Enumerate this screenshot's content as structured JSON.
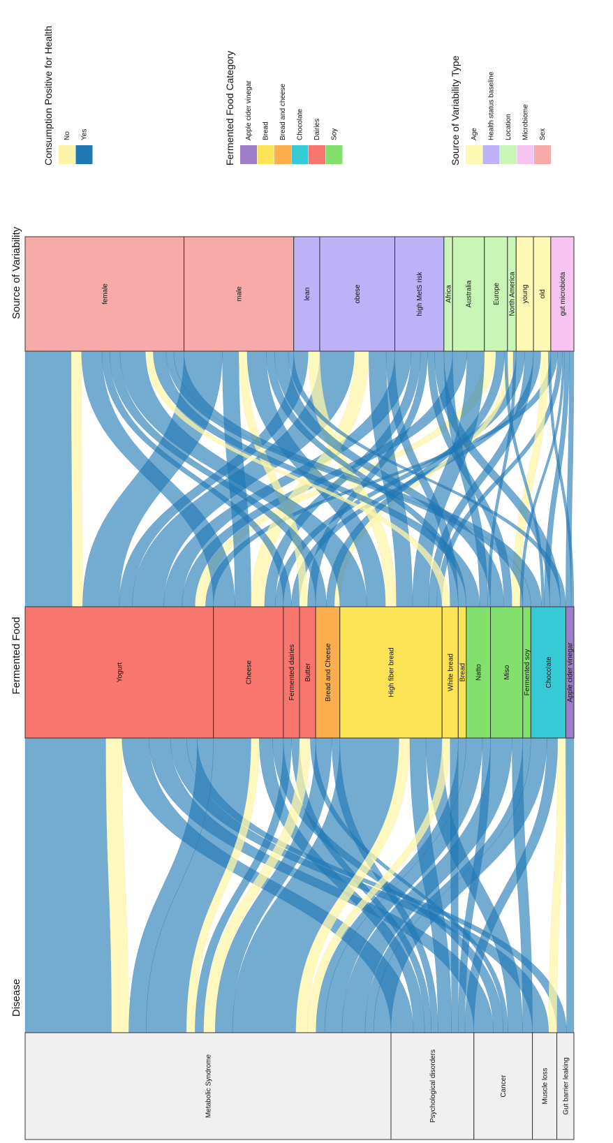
{
  "axes": [
    {
      "id": "disease",
      "title": "Disease"
    },
    {
      "id": "food",
      "title": "Fermented Food"
    },
    {
      "id": "source",
      "title": "Source of Variability"
    }
  ],
  "nodes": {
    "disease": [
      {
        "id": "d_met",
        "label": "Metabolic Syndrome",
        "color": "#f0f0f0",
        "weight": 150
      },
      {
        "id": "d_psy",
        "label": "Psychological disorders",
        "color": "#f0f0f0",
        "weight": 34
      },
      {
        "id": "d_can",
        "label": "Cancer",
        "color": "#f0f0f0",
        "weight": 24
      },
      {
        "id": "d_mus",
        "label": "Muscle loss",
        "color": "#f0f0f0",
        "weight": 10
      },
      {
        "id": "d_gut",
        "label": "Gut barrier leaking",
        "color": "#f0f0f0",
        "weight": 7
      }
    ],
    "food": [
      {
        "id": "f_yog",
        "label": "Yogurt",
        "color": "#f8766d",
        "weight": 70
      },
      {
        "id": "f_che",
        "label": "Cheese",
        "color": "#f8766d",
        "weight": 26
      },
      {
        "id": "f_fd",
        "label": "Fermented dairies",
        "color": "#f8766d",
        "weight": 6
      },
      {
        "id": "f_but",
        "label": "Butter",
        "color": "#f8766d",
        "weight": 6
      },
      {
        "id": "f_bc",
        "label": "Bread and Cheese",
        "color": "#fbae4b",
        "weight": 9
      },
      {
        "id": "f_hfb",
        "label": "High fiber bread",
        "color": "#fde457",
        "weight": 38
      },
      {
        "id": "f_wb",
        "label": "White bread",
        "color": "#fde457",
        "weight": 6
      },
      {
        "id": "f_br",
        "label": "Bread",
        "color": "#fde457",
        "weight": 3
      },
      {
        "id": "f_nat",
        "label": "Natto",
        "color": "#82e06c",
        "weight": 9
      },
      {
        "id": "f_mis",
        "label": "Miso",
        "color": "#82e06c",
        "weight": 12
      },
      {
        "id": "f_fs",
        "label": "Fermented soy",
        "color": "#82e06c",
        "weight": 3
      },
      {
        "id": "f_cho",
        "label": "Chocolate",
        "color": "#36c9d6",
        "weight": 13
      },
      {
        "id": "f_acv",
        "label": "Apple cider vinegar",
        "color": "#9e7dc8",
        "weight": 3
      }
    ],
    "source": [
      {
        "id": "s_fem",
        "label": "female",
        "color": "#f8aaa8",
        "weight": 55
      },
      {
        "id": "s_mal",
        "label": "male",
        "color": "#f8aaa8",
        "weight": 38
      },
      {
        "id": "s_lea",
        "label": "lean",
        "color": "#bdb1f8",
        "weight": 9
      },
      {
        "id": "s_obe",
        "label": "obese",
        "color": "#bdb1f8",
        "weight": 26
      },
      {
        "id": "s_hms",
        "label": "high MetS risk",
        "color": "#bdb1f8",
        "weight": 17
      },
      {
        "id": "s_afr",
        "label": "Africa",
        "color": "#c9f5b6",
        "weight": 3
      },
      {
        "id": "s_aus",
        "label": "Australia",
        "color": "#c9f5b6",
        "weight": 11
      },
      {
        "id": "s_eur",
        "label": "Europe",
        "color": "#c9f5b6",
        "weight": 8
      },
      {
        "id": "s_nam",
        "label": "North America",
        "color": "#c9f5b6",
        "weight": 3
      },
      {
        "id": "s_you",
        "label": "young",
        "color": "#fdf9b4",
        "weight": 6
      },
      {
        "id": "s_old",
        "label": "old",
        "color": "#fdf9b4",
        "weight": 6
      },
      {
        "id": "s_gut",
        "label": "gut microbiota",
        "color": "#f7c3f0",
        "weight": 8
      }
    ]
  },
  "links": {
    "disease_food": [
      [
        "d_met",
        "f_yog",
        30,
        "yes"
      ],
      [
        "d_met",
        "f_yog",
        6,
        "no"
      ],
      [
        "d_psy",
        "f_yog",
        10,
        "yes"
      ],
      [
        "d_can",
        "f_yog",
        8,
        "yes"
      ],
      [
        "d_mus",
        "f_yog",
        6,
        "yes"
      ],
      [
        "d_gut",
        "f_yog",
        4,
        "yes"
      ],
      [
        "d_met",
        "f_yog",
        6,
        "yes"
      ],
      [
        "d_met",
        "f_che",
        14,
        "yes"
      ],
      [
        "d_met",
        "f_che",
        3,
        "no"
      ],
      [
        "d_psy",
        "f_che",
        5,
        "yes"
      ],
      [
        "d_can",
        "f_che",
        4,
        "yes"
      ],
      [
        "d_met",
        "f_fd",
        3,
        "yes"
      ],
      [
        "d_psy",
        "f_fd",
        3,
        "yes"
      ],
      [
        "d_met",
        "f_but",
        4,
        "no"
      ],
      [
        "d_can",
        "f_but",
        2,
        "yes"
      ],
      [
        "d_met",
        "f_bc",
        6,
        "yes"
      ],
      [
        "d_psy",
        "f_bc",
        3,
        "yes"
      ],
      [
        "d_met",
        "f_hfb",
        22,
        "yes"
      ],
      [
        "d_met",
        "f_hfb",
        4,
        "no"
      ],
      [
        "d_psy",
        "f_hfb",
        6,
        "yes"
      ],
      [
        "d_can",
        "f_hfb",
        6,
        "yes"
      ],
      [
        "d_met",
        "f_wb",
        3,
        "no"
      ],
      [
        "d_psy",
        "f_wb",
        3,
        "yes"
      ],
      [
        "d_met",
        "f_br",
        3,
        "yes"
      ],
      [
        "d_met",
        "f_nat",
        6,
        "yes"
      ],
      [
        "d_psy",
        "f_nat",
        3,
        "yes"
      ],
      [
        "d_met",
        "f_mis",
        8,
        "yes"
      ],
      [
        "d_can",
        "f_mis",
        4,
        "yes"
      ],
      [
        "d_met",
        "f_fs",
        3,
        "yes"
      ],
      [
        "d_met",
        "f_cho",
        6,
        "yes"
      ],
      [
        "d_psy",
        "f_cho",
        4,
        "yes"
      ],
      [
        "d_mus",
        "f_cho",
        3,
        "no"
      ],
      [
        "d_gut",
        "f_acv",
        3,
        "yes"
      ]
    ],
    "food_source": [
      [
        "f_yog",
        "s_fem",
        18,
        "yes"
      ],
      [
        "f_yog",
        "s_fem",
        4,
        "no"
      ],
      [
        "f_yog",
        "s_mal",
        14,
        "yes"
      ],
      [
        "f_yog",
        "s_lea",
        5,
        "yes"
      ],
      [
        "f_yog",
        "s_obe",
        12,
        "yes"
      ],
      [
        "f_yog",
        "s_hms",
        7,
        "yes"
      ],
      [
        "f_yog",
        "s_aus",
        5,
        "yes"
      ],
      [
        "f_yog",
        "s_eur",
        4,
        "no"
      ],
      [
        "f_yog",
        "s_gut",
        3,
        "yes"
      ],
      [
        "f_che",
        "s_fem",
        8,
        "yes"
      ],
      [
        "f_che",
        "s_mal",
        6,
        "yes"
      ],
      [
        "f_che",
        "s_obe",
        5,
        "no"
      ],
      [
        "f_che",
        "s_hms",
        4,
        "yes"
      ],
      [
        "f_che",
        "s_you",
        3,
        "yes"
      ],
      [
        "f_fd",
        "s_fem",
        3,
        "yes"
      ],
      [
        "f_fd",
        "s_old",
        3,
        "yes"
      ],
      [
        "f_but",
        "s_mal",
        3,
        "no"
      ],
      [
        "f_but",
        "s_hms",
        3,
        "yes"
      ],
      [
        "f_bc",
        "s_fem",
        4,
        "yes"
      ],
      [
        "f_bc",
        "s_eur",
        3,
        "yes"
      ],
      [
        "f_bc",
        "s_nam",
        2,
        "no"
      ],
      [
        "f_hfb",
        "s_fem",
        10,
        "yes"
      ],
      [
        "f_hfb",
        "s_mal",
        7,
        "yes"
      ],
      [
        "f_hfb",
        "s_lea",
        4,
        "no"
      ],
      [
        "f_hfb",
        "s_obe",
        6,
        "yes"
      ],
      [
        "f_hfb",
        "s_aus",
        6,
        "yes"
      ],
      [
        "f_hfb",
        "s_you",
        3,
        "yes"
      ],
      [
        "f_hfb",
        "s_gut",
        2,
        "yes"
      ],
      [
        "f_wb",
        "s_fem",
        3,
        "no"
      ],
      [
        "f_wb",
        "s_obe",
        3,
        "yes"
      ],
      [
        "f_br",
        "s_mal",
        3,
        "yes"
      ],
      [
        "f_nat",
        "s_fem",
        5,
        "yes"
      ],
      [
        "f_nat",
        "s_afr",
        3,
        "yes"
      ],
      [
        "f_nat",
        "s_nam",
        1,
        "yes"
      ],
      [
        "f_mis",
        "s_mal",
        5,
        "yes"
      ],
      [
        "f_mis",
        "s_hms",
        3,
        "yes"
      ],
      [
        "f_mis",
        "s_old",
        3,
        "no"
      ],
      [
        "f_mis",
        "s_gut",
        1,
        "yes"
      ],
      [
        "f_fs",
        "s_fem",
        3,
        "yes"
      ],
      [
        "f_cho",
        "s_fem",
        4,
        "yes"
      ],
      [
        "f_cho",
        "s_eur",
        1,
        "yes"
      ],
      [
        "f_cho",
        "s_gut",
        2,
        "yes"
      ],
      [
        "f_cho",
        "s_hms",
        0,
        "yes"
      ],
      [
        "f_cho",
        "s_aus",
        0,
        "yes"
      ],
      [
        "f_cho",
        "s_mal",
        0,
        "yes"
      ],
      [
        "f_cho",
        "s_you",
        0,
        "yes"
      ],
      [
        "f_cho",
        "s_lea",
        0,
        "yes"
      ],
      [
        "f_cho",
        "s_obe",
        0,
        "yes"
      ],
      [
        "f_cho",
        "s_nam",
        0,
        "yes"
      ],
      [
        "f_cho",
        "s_afr",
        0,
        "yes"
      ],
      [
        "f_cho",
        "s_old",
        0,
        "yes"
      ],
      [
        "f_cho",
        "s_gut",
        0,
        "yes"
      ],
      [
        "f_cho",
        "s_eur",
        0,
        "yes"
      ],
      [
        "f_cho",
        "s_hms",
        4,
        "yes"
      ],
      [
        "f_cho",
        "s_mal",
        2,
        "yes"
      ],
      [
        "f_acv",
        "s_gut",
        2,
        "yes"
      ],
      [
        "f_acv",
        "s_old",
        1,
        "yes"
      ]
    ]
  },
  "link_colors": {
    "yes": "#1f78b4",
    "no": "#fdf6a8"
  },
  "legends": [
    {
      "title": "Consumption Positive for Health",
      "items": [
        {
          "label": "No",
          "color": "#fbf3a6"
        },
        {
          "label": "Yes",
          "color": "#1f78b4"
        }
      ]
    },
    {
      "title": "Fermented Food Category",
      "items": [
        {
          "label": "Apple cider vinegar",
          "color": "#9e7dc8"
        },
        {
          "label": "Bread",
          "color": "#fde457"
        },
        {
          "label": "Bread and cheese",
          "color": "#fbae4b"
        },
        {
          "label": "Chocolate",
          "color": "#36c9d6"
        },
        {
          "label": "Dairies",
          "color": "#f8766d"
        },
        {
          "label": "Soy",
          "color": "#82e06c"
        }
      ]
    },
    {
      "title": "Source of Variability Type",
      "items": [
        {
          "label": "Age",
          "color": "#fdf9b4"
        },
        {
          "label": "Health status baseline",
          "color": "#bdb1f8"
        },
        {
          "label": "Location",
          "color": "#c9f5b6"
        },
        {
          "label": "Microbiome",
          "color": "#f7c3f0"
        },
        {
          "label": "Sex",
          "color": "#f8aaa8"
        }
      ]
    }
  ]
}
